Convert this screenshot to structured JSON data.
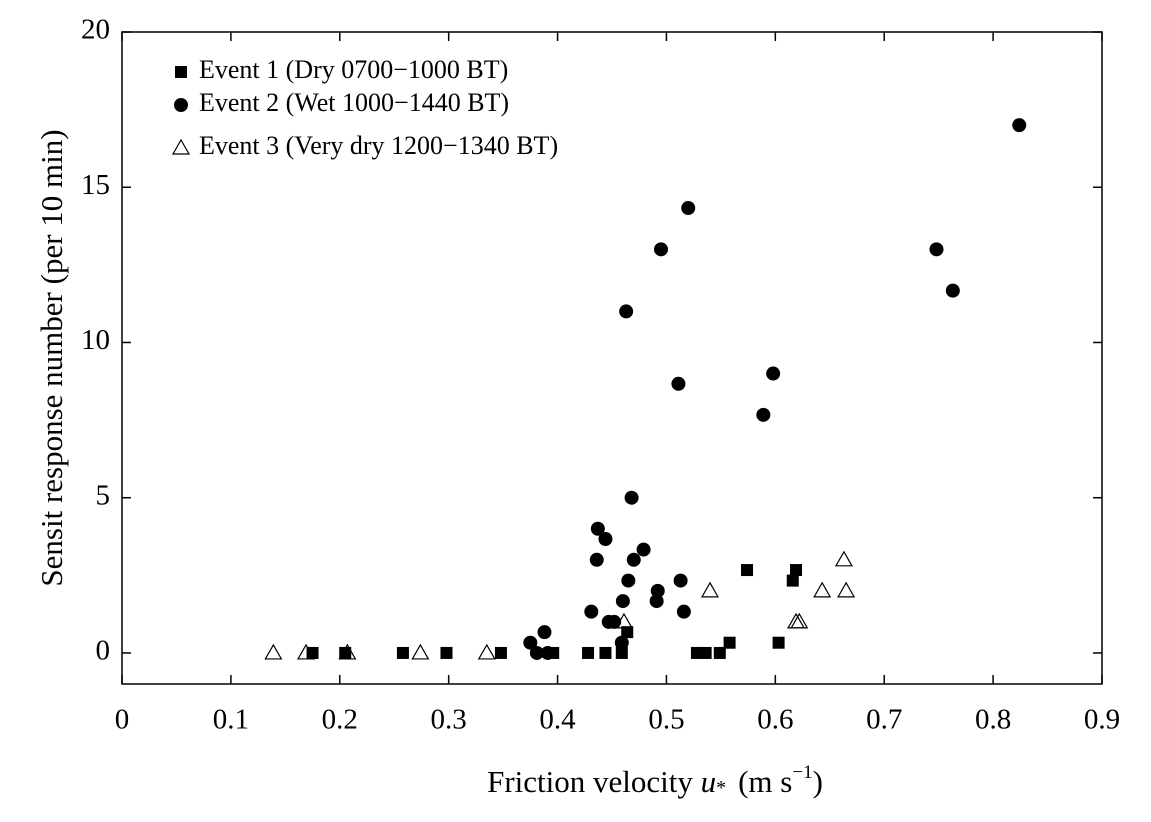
{
  "chart_data": {
    "type": "scatter",
    "x_label": [
      "Friction velocity",
      "u",
      "*",
      "(m s",
      "−1",
      ")"
    ],
    "y_label": "Sensit response number  (per 10 min)",
    "xlim": [
      0,
      0.9
    ],
    "ylim": [
      -1,
      20
    ],
    "xticks": [
      0,
      0.1,
      0.2,
      0.3,
      0.4,
      0.5,
      0.6,
      0.7,
      0.8,
      0.9
    ],
    "yticks": [
      0,
      5,
      10,
      15,
      20
    ],
    "legend": "upper-left",
    "series": [
      {
        "name": "Event 1 (Dry 0700−1000 BT)",
        "marker": "square",
        "color": "#000000",
        "x": [
          0.175,
          0.205,
          0.258,
          0.298,
          0.348,
          0.396,
          0.428,
          0.444,
          0.459,
          0.464,
          0.528,
          0.536,
          0.549,
          0.558,
          0.574,
          0.603,
          0.616,
          0.619
        ],
        "values": [
          0,
          0,
          0,
          0,
          0,
          0,
          0,
          0,
          0,
          0.67,
          0,
          0,
          0,
          0.33,
          2.67,
          0.33,
          2.33,
          2.67
        ]
      },
      {
        "name": "Event 2 (Wet 1000−1440 BT)",
        "marker": "circle",
        "color": "#000000",
        "x": [
          0.375,
          0.381,
          0.388,
          0.391,
          0.431,
          0.437,
          0.436,
          0.444,
          0.447,
          0.452,
          0.459,
          0.46,
          0.465,
          0.463,
          0.468,
          0.47,
          0.479,
          0.491,
          0.492,
          0.495,
          0.511,
          0.513,
          0.516,
          0.52,
          0.589,
          0.598,
          0.748,
          0.763,
          0.824
        ],
        "values": [
          0.33,
          0,
          0.67,
          0,
          1.33,
          4,
          3,
          3.67,
          1,
          1,
          0.33,
          1.67,
          2.33,
          11,
          5,
          3,
          3.33,
          1.67,
          2,
          13,
          8.67,
          2.33,
          1.33,
          14.33,
          7.67,
          9,
          13,
          11.67,
          17
        ]
      },
      {
        "name": "Event 3 (Very dry 1200−1340 BT)",
        "marker": "triangle",
        "color": "#000000",
        "x": [
          0.139,
          0.169,
          0.207,
          0.274,
          0.335,
          0.461,
          0.54,
          0.619,
          0.622,
          0.643,
          0.663,
          0.665
        ],
        "values": [
          0,
          0,
          0,
          0,
          0,
          1,
          2,
          1,
          1,
          2,
          3,
          2
        ]
      }
    ]
  }
}
